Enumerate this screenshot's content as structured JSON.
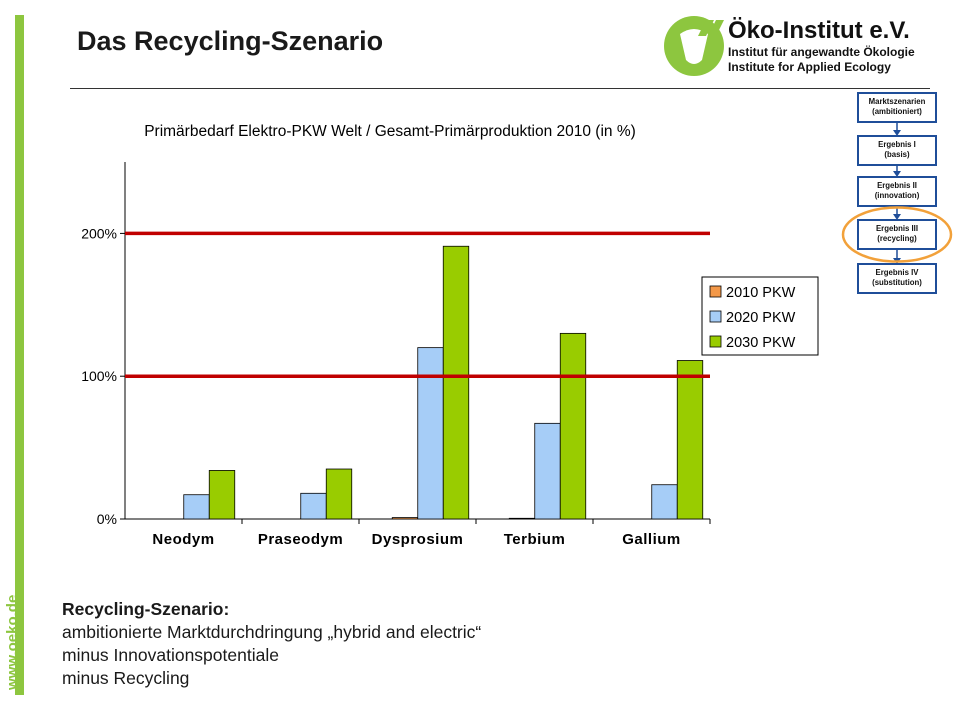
{
  "header": {
    "title": "Das Recycling-Szenario",
    "side_url": "www.oeko.de"
  },
  "logo": {
    "name": "Öko-Institut e.V.",
    "line1": "Institut für angewandte Ökologie",
    "line2": "Institute for Applied Ecology"
  },
  "colors": {
    "brand_green": "#8dc63f",
    "reference_line": "#c00000",
    "series_2010": "#f39848",
    "series_2020": "#a6cdf7",
    "series_2030": "#99cc00",
    "flow_box": "#1f4e99",
    "highlight_circle": "#f2a13a"
  },
  "flow": {
    "boxes": [
      "Marktszenarien (ambitioniert)",
      "Ergebnis I (basis)",
      "Ergebnis II (innovation)",
      "Ergebnis III (recycling)",
      "Ergebnis IV (substitution)"
    ],
    "lines": [
      [
        "Marktszenarien",
        "(ambitioniert)"
      ],
      [
        "Ergebnis I",
        "(basis)"
      ],
      [
        "Ergebnis II",
        "(innovation)"
      ],
      [
        "Ergebnis III",
        "(recycling)"
      ],
      [
        "Ergebnis IV",
        "(substitution)"
      ]
    ],
    "highlighted_index": 3
  },
  "chart_data": {
    "type": "bar",
    "title": "Primärbedarf Elektro-PKW Welt / Gesamt-Primärproduktion 2010 (in %)",
    "categories": [
      "Neodym",
      "Praseodym",
      "Dysprosium",
      "Terbium",
      "Gallium"
    ],
    "series": [
      {
        "name": "2010 PKW",
        "values": [
          0,
          0,
          1,
          0.5,
          0
        ]
      },
      {
        "name": "2020 PKW",
        "values": [
          17,
          18,
          120,
          67,
          24
        ]
      },
      {
        "name": "2030 PKW",
        "values": [
          34,
          35,
          191,
          130,
          111
        ]
      }
    ],
    "yticks": [
      0,
      100,
      200
    ],
    "ytick_labels": [
      "0%",
      "100%",
      "200%"
    ],
    "ylim": [
      0,
      250
    ],
    "reference_lines": [
      100,
      200
    ],
    "legend_position": "right",
    "grid": false,
    "xlabel": "",
    "ylabel": ""
  },
  "footer": {
    "heading": "Recycling-Szenario:",
    "lines": [
      "ambitionierte Marktdurchdringung „hybrid and electric“",
      "minus Innovationspotentiale",
      "minus Recycling"
    ]
  }
}
